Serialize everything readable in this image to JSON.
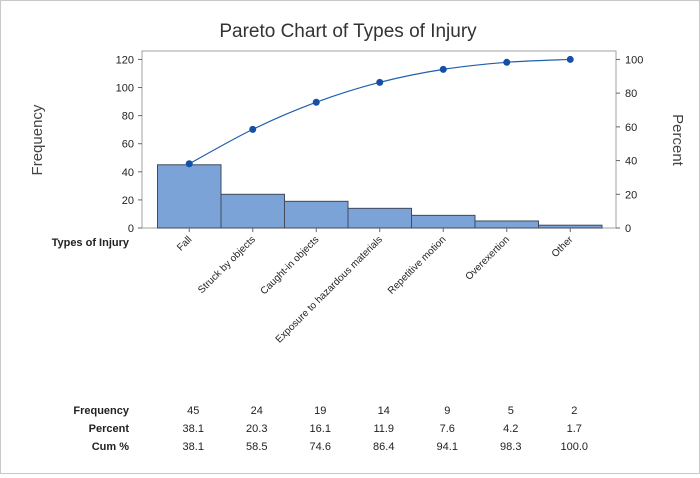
{
  "chart_data": {
    "type": "bar",
    "title": "Pareto Chart of Types of Injury",
    "xlabel": "Types of Injury",
    "ylabel": "Frequency",
    "y2label": "Percent",
    "categories": [
      "Fall",
      "Struck by objects",
      "Caught-in objects",
      "Exposure to hazardous materials",
      "Repetitive motion",
      "Overexertion",
      "Other"
    ],
    "series": [
      {
        "name": "Frequency",
        "type": "bar",
        "axis": "left",
        "values": [
          45,
          24,
          19,
          14,
          9,
          5,
          2
        ]
      },
      {
        "name": "Cum %",
        "type": "line",
        "axis": "right",
        "values": [
          38.1,
          58.5,
          74.6,
          86.4,
          94.1,
          98.3,
          100.0
        ]
      }
    ],
    "ylim": [
      0,
      126
    ],
    "yticks": [
      0,
      20,
      40,
      60,
      80,
      100,
      120
    ],
    "y2lim": [
      0,
      105
    ],
    "y2ticks": [
      0,
      20,
      40,
      60,
      80,
      100
    ],
    "grid": false,
    "colors": {
      "bar": "#7ba3d8",
      "bar_edge": "#3f4a5a",
      "line": "#1f5fb0",
      "point": "#1450a6"
    },
    "table": {
      "rows": [
        {
          "label": "Frequency",
          "values": [
            "45",
            "24",
            "19",
            "14",
            "9",
            "5",
            "2"
          ]
        },
        {
          "label": "Percent",
          "values": [
            "38.1",
            "20.3",
            "16.1",
            "11.9",
            "7.6",
            "4.2",
            "1.7"
          ]
        },
        {
          "label": "Cum %",
          "values": [
            "38.1",
            "58.5",
            "74.6",
            "86.4",
            "94.1",
            "98.3",
            "100.0"
          ]
        }
      ]
    }
  }
}
